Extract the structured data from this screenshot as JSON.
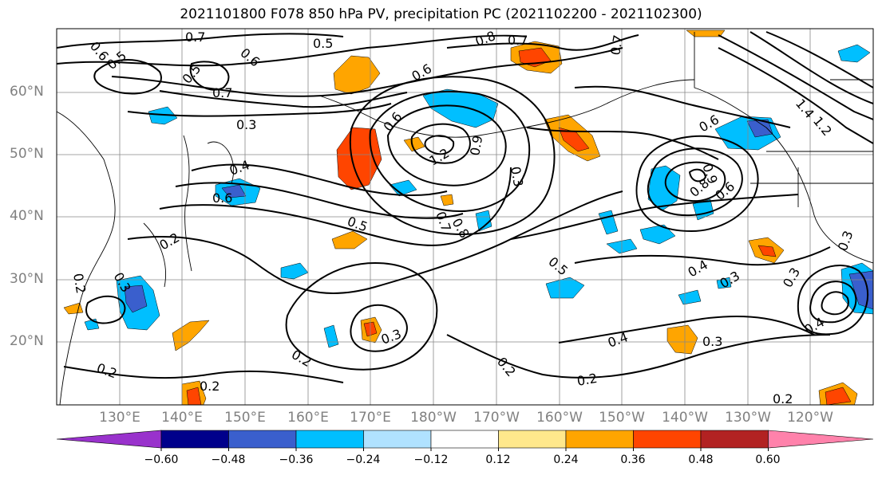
{
  "title": "2021101800 F078 850 hPa PV, precipitation PC (2021102200 - 2021102300)",
  "lat_labels": [
    "60°N",
    "50°N",
    "40°N",
    "30°N",
    "20°N"
  ],
  "lon_labels": [
    "130°E",
    "140°E",
    "150°E",
    "160°E",
    "170°E",
    "180°W",
    "170°W",
    "160°W",
    "150°W",
    "140°W",
    "130°W",
    "120°W"
  ],
  "colorbar": {
    "ticks": [
      "−0.60",
      "−0.48",
      "−0.36",
      "−0.24",
      "−0.12",
      "0.12",
      "0.24",
      "0.36",
      "0.48",
      "0.60"
    ],
    "colors": [
      "#9932CC",
      "#00008B",
      "#3A5FCD",
      "#00BFFF",
      "#B0E2FF",
      "#FFFFFF",
      "#FFE88C",
      "#FFA500",
      "#FF4500",
      "#B22222",
      "#FF82AB"
    ]
  },
  "contour_labels": [
    "0.6",
    "0.5",
    "0.7",
    "0.6",
    "0.5",
    "0.8",
    "0.7",
    "0.7",
    "0.5",
    "0.7",
    "0.6",
    "0.3",
    "0.6",
    "1.2",
    "0.9",
    "0.3",
    "0.4",
    "0.6",
    "0.7",
    "0.8",
    "0.5",
    "0.2",
    "0.3",
    "0.2",
    "0.5",
    "0.4",
    "0.3",
    "0.3",
    "0.2",
    "0.2",
    "0.2",
    "0.2",
    "0.2",
    "0.4",
    "0.3",
    "0.4",
    "0.2",
    "0.6",
    "0.9",
    "0.8",
    "0.6",
    "1.4",
    "1.2",
    "0.3",
    "0.3"
  ]
}
